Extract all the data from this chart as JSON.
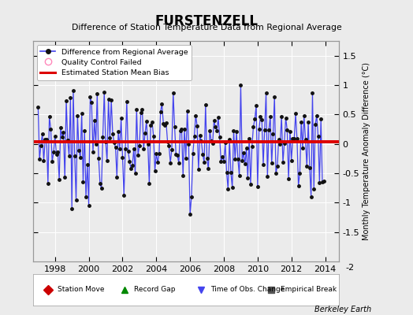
{
  "title": "FURSTENZELL",
  "subtitle": "Difference of Station Temperature Data from Regional Average",
  "ylabel_right": "Monthly Temperature Anomaly Difference (°C)",
  "mean_bias": 0.04,
  "ylim": [
    -2.0,
    1.75
  ],
  "yticks": [
    -1.5,
    -1.0,
    -0.5,
    0.0,
    0.5,
    1.0,
    1.5
  ],
  "xlim": [
    1996.7,
    2014.8
  ],
  "xticks": [
    1998,
    2000,
    2002,
    2004,
    2006,
    2008,
    2010,
    2012,
    2014
  ],
  "bg_color": "#ebebeb",
  "plot_bg": "#ebebeb",
  "line_color": "#4444ee",
  "dot_color": "#111111",
  "bias_color": "#dd0000",
  "footer": "Berkeley Earth",
  "seed": 42
}
